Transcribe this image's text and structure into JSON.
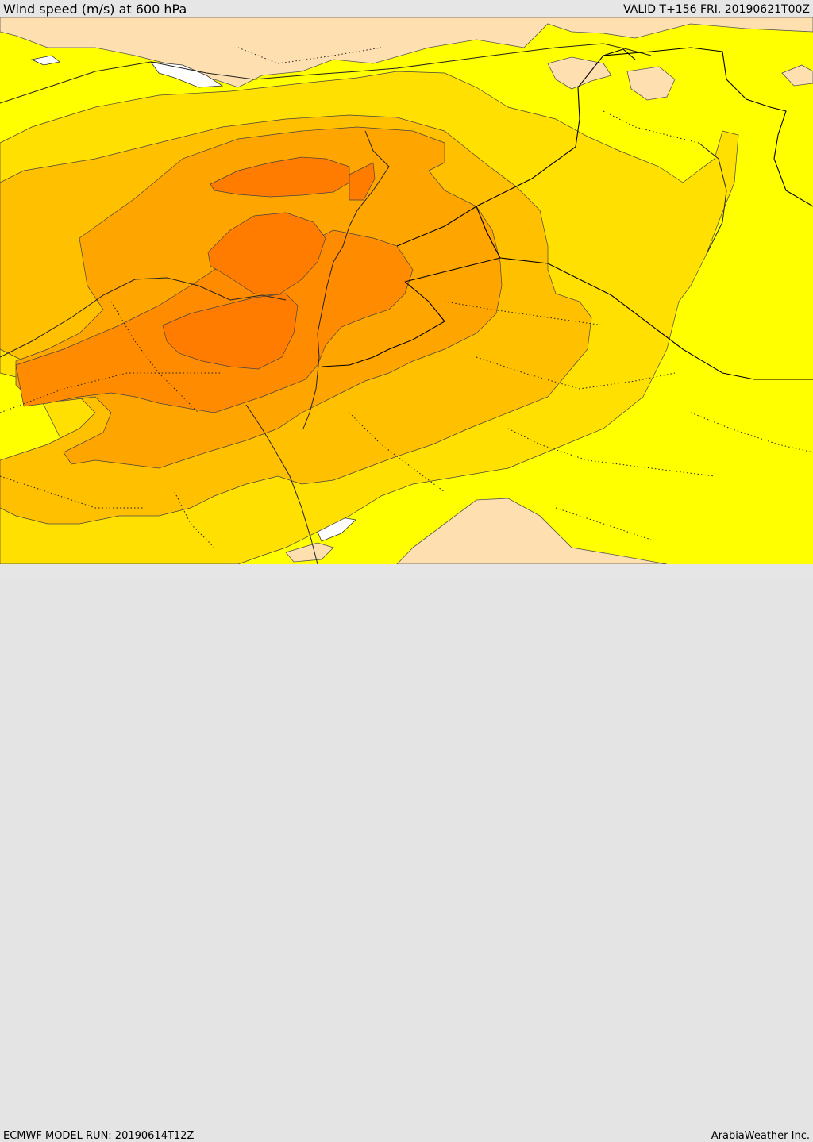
{
  "header": {
    "title": "Wind speed (m/s) at 600 hPa",
    "valid": "VALID T+156 FRI. 20190621T00Z"
  },
  "footer": {
    "model_run": "ECMWF MODEL RUN: 20190614T12Z",
    "credit": "ArabiaWeather Inc."
  },
  "colors": {
    "land_low": "#fedfb0",
    "yellow": "#ffff00",
    "gold": "#ffe000",
    "amber": "#ffc000",
    "orange_light": "#ffa500",
    "orange": "#ff8c00",
    "orange_dark": "#ff7c00",
    "sea_white": "#ffffff"
  }
}
